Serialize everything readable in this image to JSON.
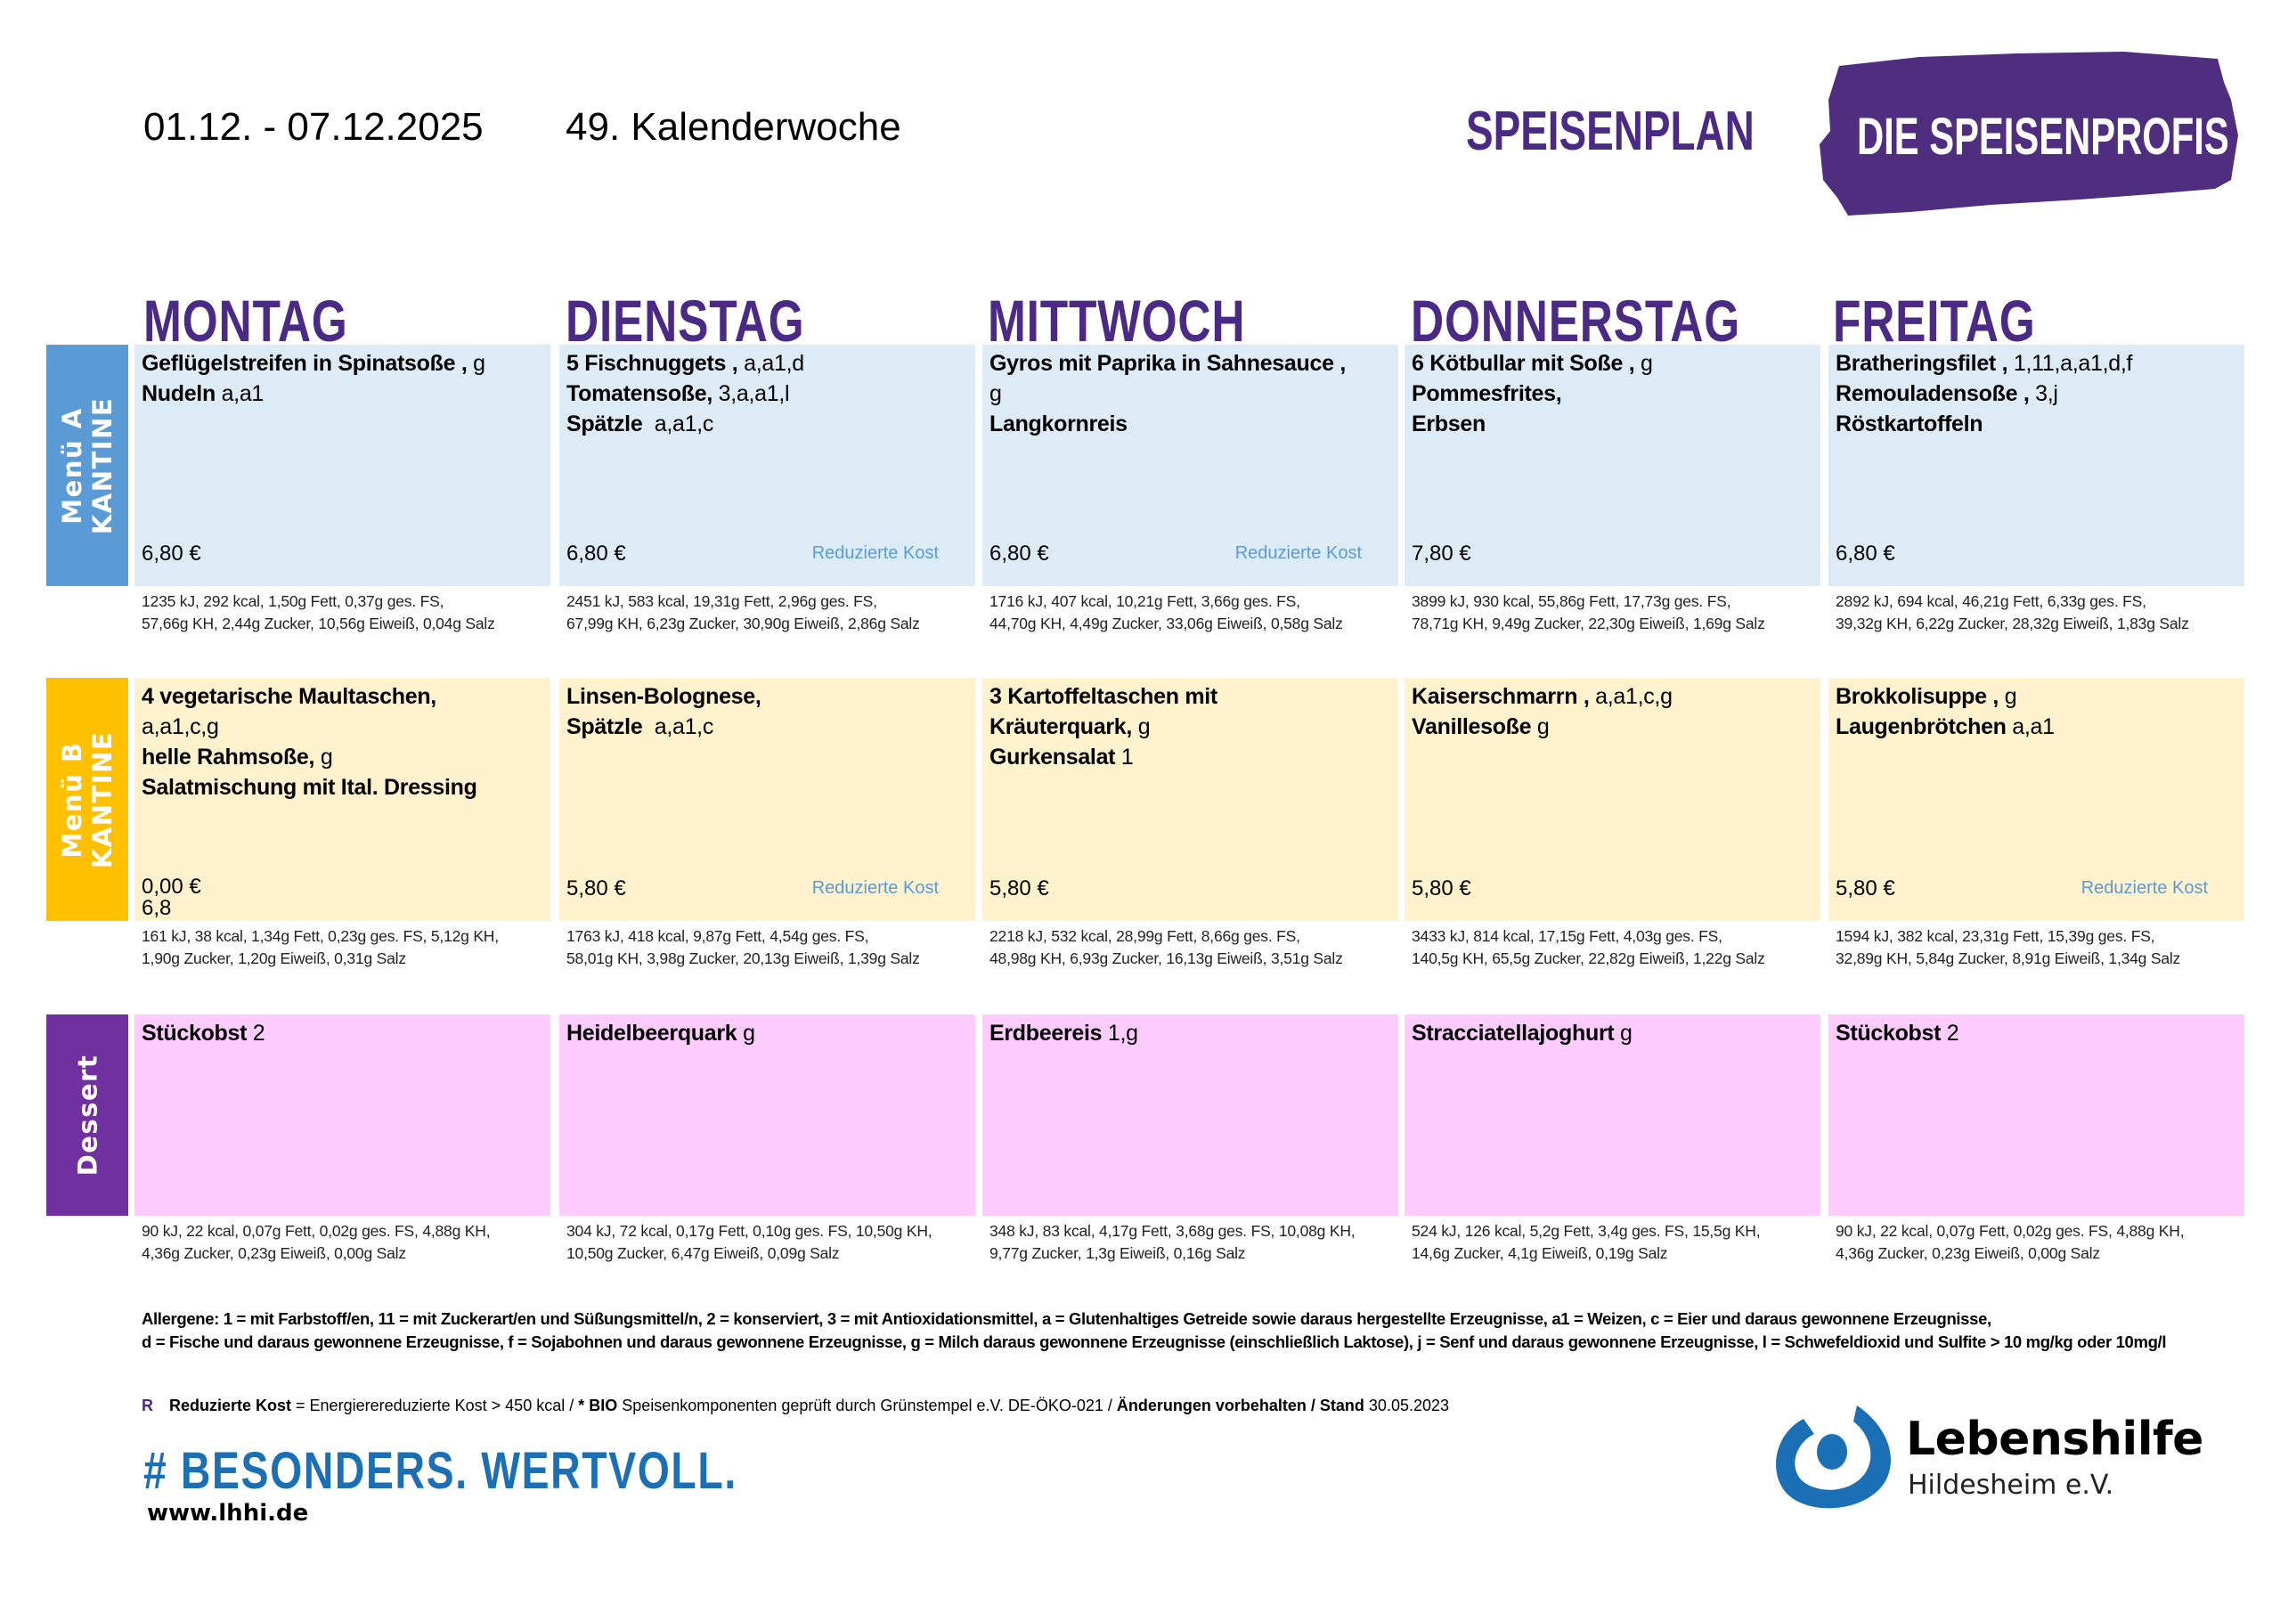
{
  "header": {
    "date_range": "01.12. - 07.12.2025",
    "calendar_week": "49. Kalenderwoche",
    "title": "SPEISENPLAN",
    "brand_badge": "DIE SPEISENPROFIS"
  },
  "colors": {
    "brand_purple": "#4b2a85",
    "menu_a_label": "#5b9bd5",
    "menu_a_cell": "#ddebf7",
    "menu_b_label": "#ffc000",
    "menu_b_cell": "#fff2cc",
    "dessert_label": "#7030a0",
    "dessert_cell": "#ffccff",
    "reduced_text": "#5b9bd5",
    "lebenshilfe_blue": "#1a6fb5"
  },
  "days": [
    "MONTAG",
    "DIENSTAG",
    "MITTWOCH",
    "DONNERSTAG",
    "FREITAG"
  ],
  "rows": [
    {
      "label_line1": "Menü A",
      "label_line2": "KANTINE",
      "cells": [
        {
          "lines": [
            {
              "b": "Geflügelstreifen in Spinatsoße ,",
              "n": " g"
            },
            {
              "b": " Nudeln",
              "n": " a,a1"
            }
          ],
          "price": "6,80 €",
          "extra": "",
          "reduced": "",
          "nutrition": [
            "1235 kJ, 292 kcal, 1,50g Fett, 0,37g ges. FS,",
            "57,66g KH, 2,44g Zucker, 10,56g Eiweiß, 0,04g Salz"
          ]
        },
        {
          "lines": [
            {
              "b": "5 Fischnuggets ,",
              "n": " a,a1,d"
            },
            {
              "b": "Tomatensoße,",
              "n": " 3,a,a1,l"
            },
            {
              "b": "Spätzle",
              "n": "  a,a1,c"
            }
          ],
          "price": "6,80 €",
          "extra": "",
          "reduced": "Reduzierte Kost",
          "nutrition": [
            "2451 kJ, 583 kcal, 19,31g Fett, 2,96g ges. FS,",
            "67,99g KH, 6,23g Zucker, 30,90g Eiweiß, 2,86g Salz"
          ]
        },
        {
          "lines": [
            {
              "b": "Gyros mit Paprika in Sahnesauce ,",
              "n": ""
            },
            {
              "b": "",
              "n": "g"
            },
            {
              "b": "Langkornreis",
              "n": ""
            }
          ],
          "price": "6,80 €",
          "extra": "",
          "reduced": "Reduzierte Kost",
          "nutrition": [
            "1716 kJ, 407 kcal, 10,21g Fett, 3,66g ges. FS,",
            "44,70g KH, 4,49g Zucker, 33,06g Eiweiß, 0,58g Salz"
          ]
        },
        {
          "lines": [
            {
              "b": "6 Kötbullar mit Soße ,",
              "n": " g"
            },
            {
              "b": "Pommesfrites,",
              "n": ""
            },
            {
              "b": "Erbsen",
              "n": ""
            }
          ],
          "price": "7,80 €",
          "extra": "",
          "reduced": "",
          "nutrition": [
            "3899 kJ, 930 kcal, 55,86g Fett, 17,73g ges. FS,",
            "78,71g KH, 9,49g Zucker, 22,30g Eiweiß, 1,69g Salz"
          ]
        },
        {
          "lines": [
            {
              "b": "Bratheringsfilet ,",
              "n": " 1,11,a,a1,d,f"
            },
            {
              "b": "Remouladensoße ,",
              "n": " 3,j"
            },
            {
              "b": "Röstkartoffeln",
              "n": ""
            }
          ],
          "price": "6,80 €",
          "extra": "",
          "reduced": "",
          "nutrition": [
            "2892 kJ, 694 kcal, 46,21g Fett, 6,33g ges. FS,",
            "39,32g KH, 6,22g Zucker, 28,32g Eiweiß, 1,83g Salz"
          ]
        }
      ]
    },
    {
      "label_line1": "Menü B",
      "label_line2": "KANTINE",
      "cells": [
        {
          "lines": [
            {
              "b": "4 vegetarische Maultaschen,",
              "n": ""
            },
            {
              "b": "",
              "n": "a,a1,c,g"
            },
            {
              "b": "helle Rahmsoße,",
              "n": " g"
            },
            {
              "b": "Salatmischung mit Ital. Dressing",
              "n": ""
            }
          ],
          "price": "0,00 €",
          "extra": "6,8",
          "reduced": "",
          "nutrition": [
            "161 kJ, 38 kcal, 1,34g Fett, 0,23g ges. FS, 5,12g KH,",
            "1,90g Zucker, 1,20g Eiweiß, 0,31g Salz"
          ]
        },
        {
          "lines": [
            {
              "b": "Linsen-Bolognese,",
              "n": ""
            },
            {
              "b": "Spätzle",
              "n": "  a,a1,c"
            }
          ],
          "price": "5,80 €",
          "extra": "",
          "reduced": "Reduzierte Kost",
          "nutrition": [
            "1763 kJ, 418 kcal, 9,87g Fett, 4,54g ges. FS,",
            "58,01g KH, 3,98g Zucker, 20,13g Eiweiß, 1,39g Salz"
          ]
        },
        {
          "lines": [
            {
              "b": "3 Kartoffeltaschen mit",
              "n": ""
            },
            {
              "b": "Kräuterquark,",
              "n": " g"
            },
            {
              "b": "Gurkensalat",
              "n": " 1"
            }
          ],
          "price": "5,80 €",
          "extra": "",
          "reduced": "",
          "nutrition": [
            "2218 kJ, 532 kcal, 28,99g Fett, 8,66g ges. FS,",
            "48,98g KH, 6,93g Zucker, 16,13g Eiweiß, 3,51g Salz"
          ]
        },
        {
          "lines": [
            {
              "b": "Kaiserschmarrn ,",
              "n": " a,a1,c,g"
            },
            {
              "b": "Vanillesoße",
              "n": " g"
            }
          ],
          "price": "5,80 €",
          "extra": "",
          "reduced": "",
          "nutrition": [
            "3433 kJ, 814 kcal, 17,15g Fett, 4,03g ges. FS,",
            "140,5g KH, 65,5g Zucker, 22,82g Eiweiß, 1,22g Salz"
          ]
        },
        {
          "lines": [
            {
              "b": "Brokkolisuppe ,",
              "n": " g"
            },
            {
              "b": "Laugenbrötchen",
              "n": " a,a1"
            }
          ],
          "price": "5,80 €",
          "extra": "",
          "reduced": "Reduzierte Kost",
          "nutrition": [
            "1594 kJ, 382 kcal, 23,31g Fett, 15,39g ges. FS,",
            "32,89g KH, 5,84g Zucker, 8,91g Eiweiß, 1,34g Salz"
          ]
        }
      ]
    },
    {
      "label_line1": "Dessert",
      "label_line2": "",
      "cells": [
        {
          "lines": [
            {
              "b": "Stückobst",
              "n": " 2"
            }
          ],
          "price": "",
          "extra": "",
          "reduced": "",
          "nutrition": [
            "90 kJ, 22 kcal, 0,07g Fett, 0,02g ges. FS, 4,88g KH,",
            "4,36g Zucker, 0,23g Eiweiß, 0,00g Salz"
          ]
        },
        {
          "lines": [
            {
              "b": "Heidelbeerquark",
              "n": " g"
            }
          ],
          "price": "",
          "extra": "",
          "reduced": "",
          "nutrition": [
            "304 kJ, 72 kcal, 0,17g Fett, 0,10g ges. FS, 10,50g KH,",
            "10,50g Zucker, 6,47g Eiweiß, 0,09g Salz"
          ]
        },
        {
          "lines": [
            {
              "b": "Erdbeereis",
              "n": " 1,g"
            }
          ],
          "price": "",
          "extra": "",
          "reduced": "",
          "nutrition": [
            "348 kJ, 83 kcal, 4,17g Fett, 3,68g ges. FS, 10,08g KH,",
            "9,77g Zucker, 1,3g Eiweiß, 0,16g Salz"
          ]
        },
        {
          "lines": [
            {
              "b": "Stracciatellajoghurt",
              "n": " g"
            }
          ],
          "price": "",
          "extra": "",
          "reduced": "",
          "nutrition": [
            "524 kJ, 126 kcal, 5,2g Fett, 3,4g ges. FS, 15,5g KH,",
            "14,6g Zucker, 4,1g Eiweiß, 0,19g Salz"
          ]
        },
        {
          "lines": [
            {
              "b": "Stückobst",
              "n": " 2"
            }
          ],
          "price": "",
          "extra": "",
          "reduced": "",
          "nutrition": [
            "90 kJ, 22 kcal, 0,07g Fett, 0,02g ges. FS, 4,88g KH,",
            "4,36g Zucker, 0,23g Eiweiß, 0,00g Salz"
          ]
        }
      ]
    }
  ],
  "footer": {
    "allergens_line1": "Allergene: 1 = mit Farbstoff/en, 11 = mit Zuckerart/en und Süßungsmittel/n, 2 = konserviert, 3 = mit Antioxidationsmittel, a = Glutenhaltiges Getreide sowie daraus hergestellte Erzeugnisse, a1 = Weizen, c = Eier und daraus gewonnene Erzeugnisse,",
    "allergens_line2": "d = Fische und daraus gewonnene Erzeugnisse, f = Sojabohnen und daraus gewonnene Erzeugnisse, g = Milch daraus gewonnene Erzeugnisse (einschließlich Laktose), j = Senf und daraus gewonnene Erzeugnisse, l = Schwefeldioxid und Sulfite > 10 mg/kg oder 10mg/l",
    "legend_marker": "R",
    "legend_reduced_label": "Reduzierte Kost",
    "legend_reduced_text": " = Energierereduzierte Kost > 450 kcal / ",
    "legend_bio_label": "* BIO",
    "legend_bio_text": " Speisenkomponenten geprüft durch Grünstempel e.V. DE-ÖKO-021 / ",
    "legend_changes_label": "Änderungen vorbehalten / Stand",
    "legend_date": " 30.05.2023",
    "slogan": "# BESONDERS. WERTVOLL.",
    "website": "www.lhhi.de",
    "org_name": "Lebenshilfe",
    "org_sub": "Hildesheim e.V."
  }
}
